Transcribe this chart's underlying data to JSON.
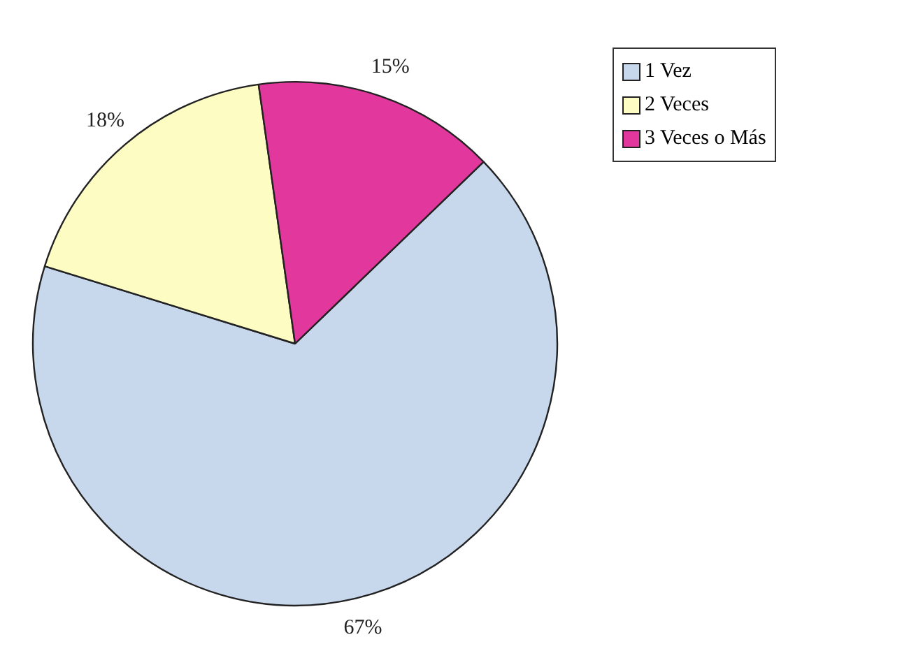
{
  "chart_data": {
    "type": "pie",
    "categories": [
      "1 Vez",
      "2 Veces",
      "3 Veces o Más"
    ],
    "values": [
      67,
      18,
      15
    ],
    "colors": [
      "#c8d8ec",
      "#fdfcc2",
      "#e2379c"
    ],
    "value_labels": [
      "67%",
      "18%",
      "15%"
    ],
    "legend": "top right"
  }
}
